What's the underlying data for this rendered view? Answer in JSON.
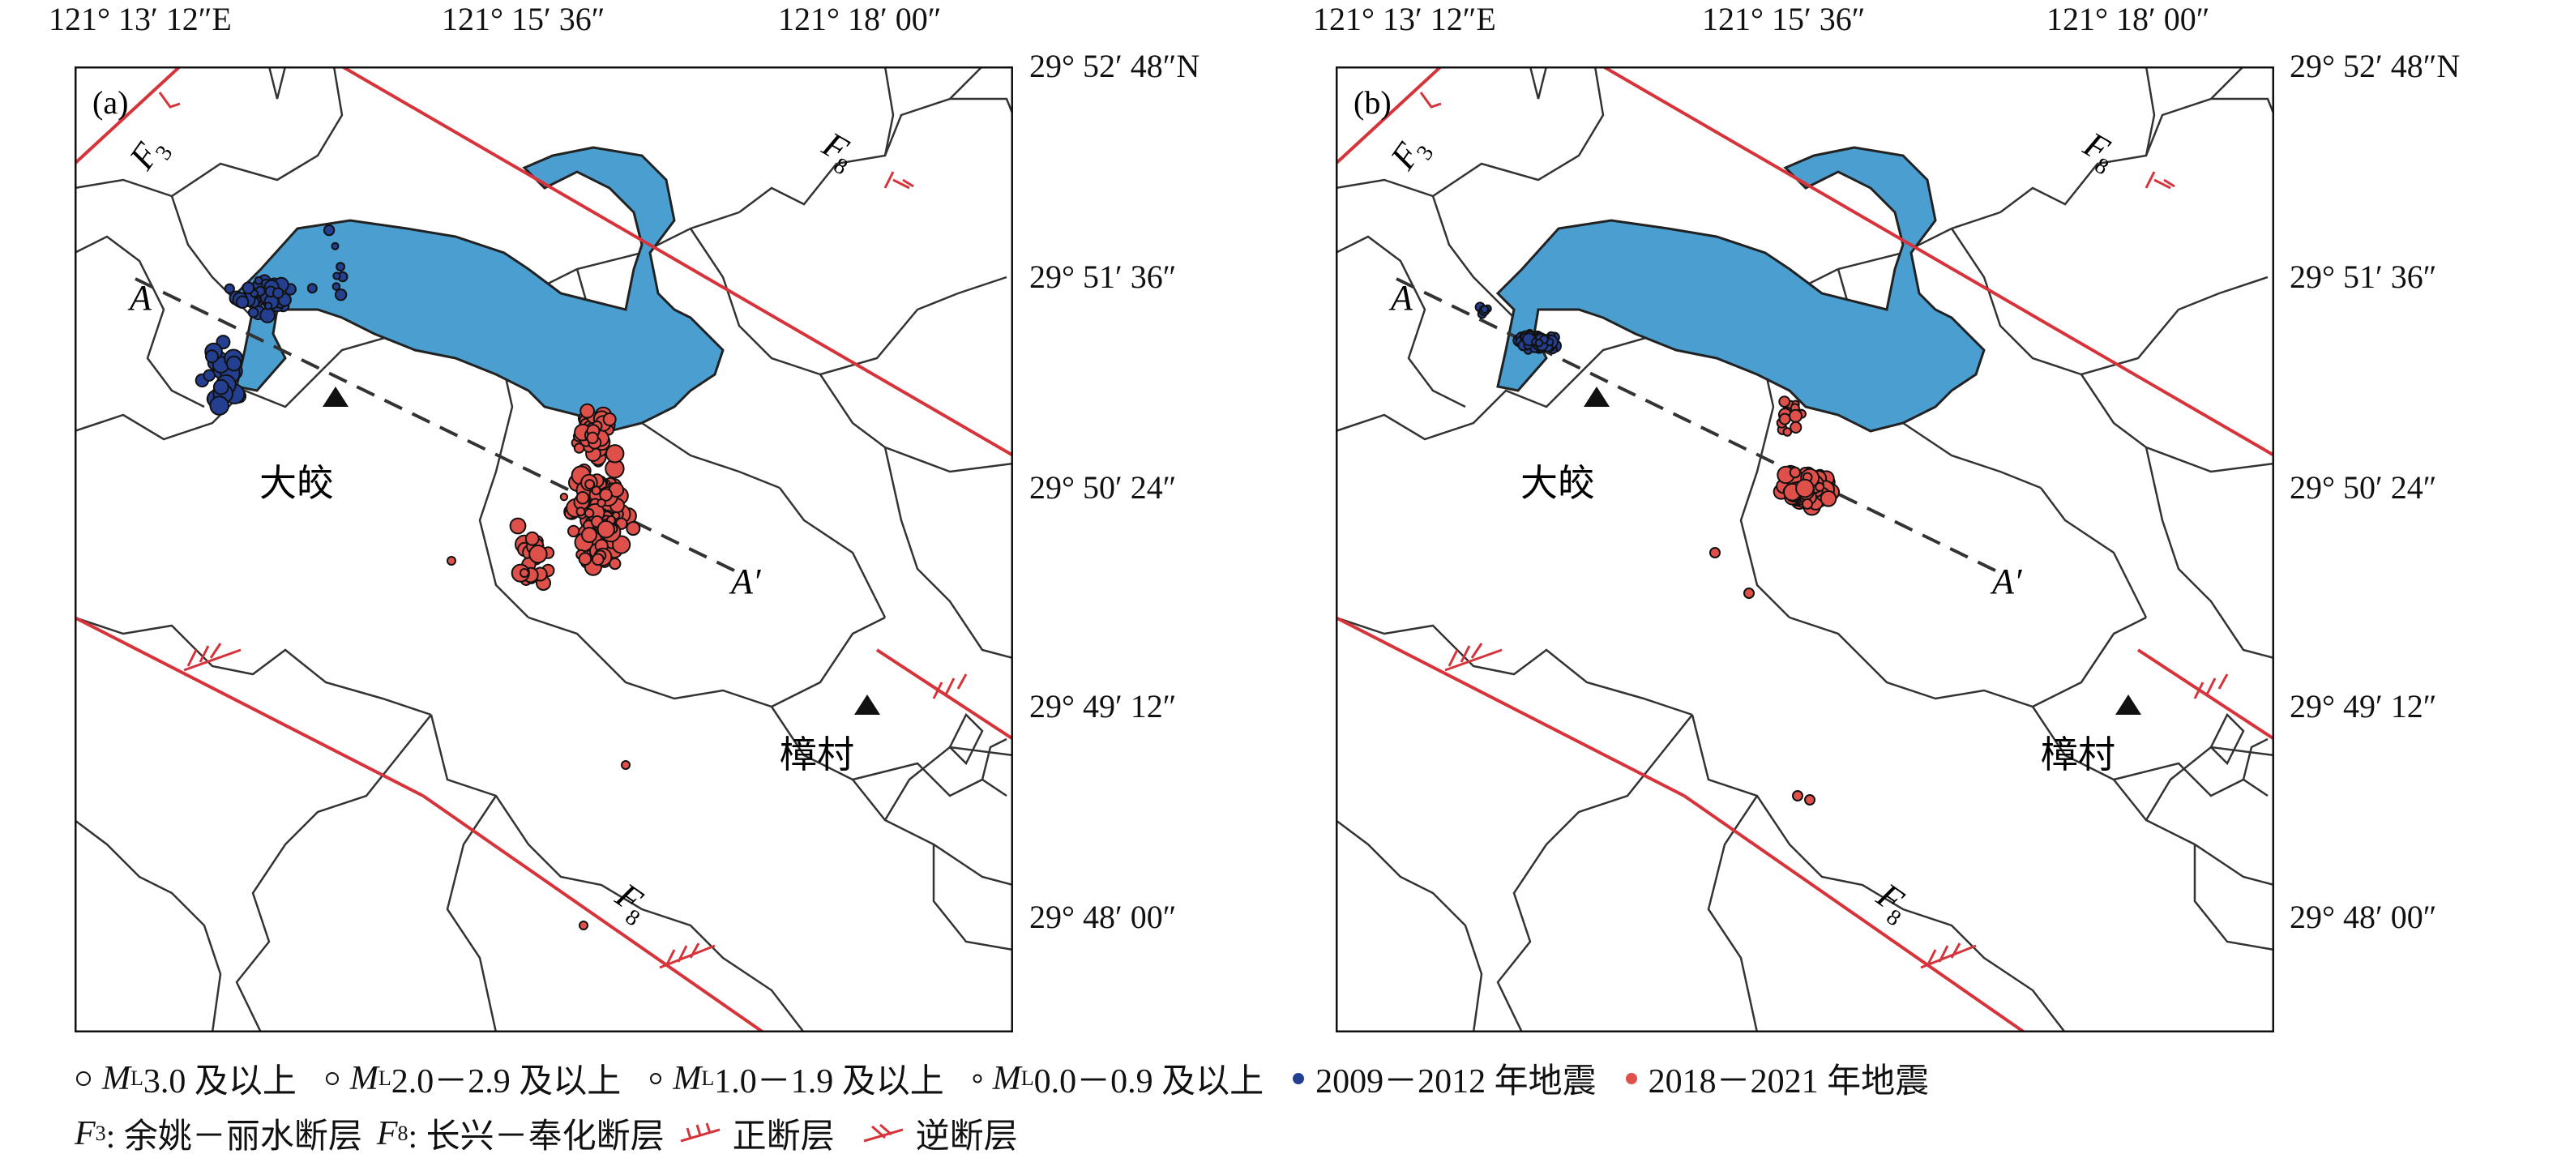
{
  "top_coords": [
    "121° 13′ 12″E",
    "121° 15′ 36″",
    "121° 18′ 00″"
  ],
  "right_coords": [
    "29° 52′ 48″N",
    "29° 51′ 36″",
    "29° 50′ 24″",
    "29° 49′ 12″",
    "29° 48′ 00″"
  ],
  "panels": [
    {
      "label": "(a)",
      "profile_start": "A",
      "profile_end": "A′",
      "fault_F3": "F",
      "fault_F3_sub": "3",
      "fault_F8": "F",
      "fault_F8_sub": "8",
      "town1": "大皎",
      "town2": "樟村"
    },
    {
      "label": "(b)",
      "profile_start": "A",
      "profile_end": "A′",
      "fault_F3": "F",
      "fault_F3_sub": "3",
      "fault_F8": "F",
      "fault_F8_sub": "8",
      "town1": "大皎",
      "town2": "樟村"
    }
  ],
  "legend": {
    "ml_symbol": "M",
    "ml_sub": "L",
    "mag1": "3.0 及以上",
    "mag2": "2.0－2.9 及以上",
    "mag3": "1.0－1.9 及以上",
    "mag4": "0.0－0.9 及以上",
    "period1": "2009－2012 年地震",
    "period2": "2018－2021 年地震",
    "f3_symbol": "F",
    "f3_sub": "3",
    "f3_name": ": 余姚－丽水断层",
    "f8_symbol": "F",
    "f8_sub": "8",
    "f8_name": ": 长兴－奉化断层",
    "normal_fault": "正断层",
    "reverse_fault": "逆断层"
  },
  "colors": {
    "eq_2009_2012": "#243f8f",
    "eq_2018_2021": "#e0504a",
    "reservoir": "#4a9fd0",
    "fault": "#d6333a",
    "boundary": "#333333"
  }
}
